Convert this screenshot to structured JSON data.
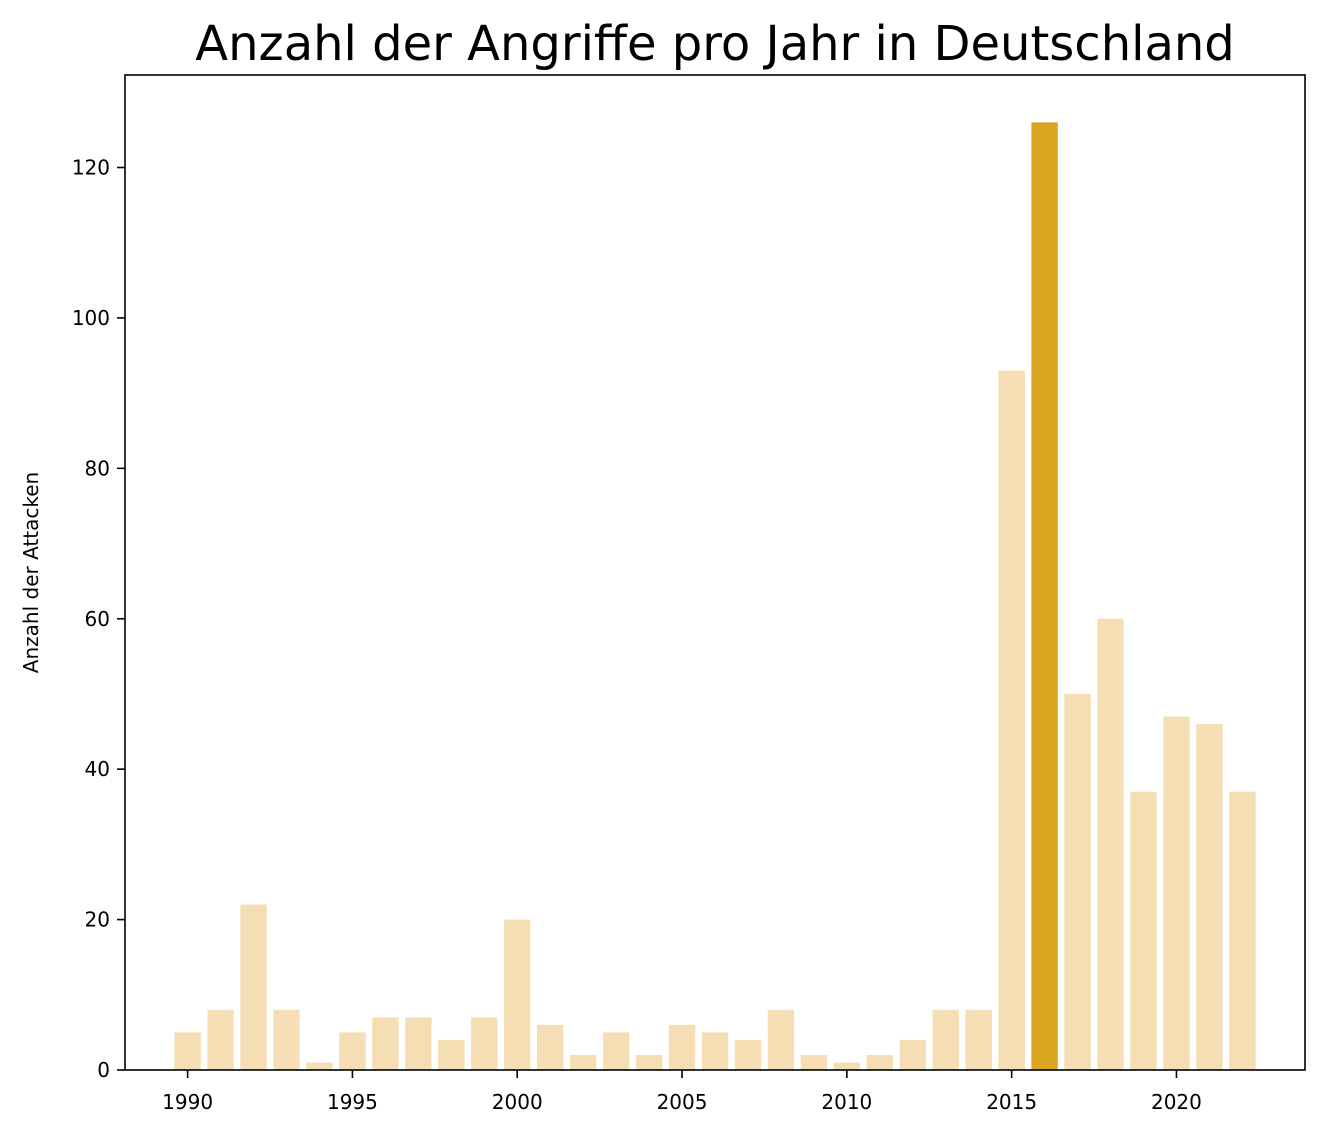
{
  "chart_data": {
    "type": "bar",
    "title": "Anzahl der Angriffe pro Jahr in Deutschland",
    "xlabel": "",
    "ylabel": "Anzahl der Attacken",
    "x": [
      1990,
      1991,
      1992,
      1993,
      1994,
      1995,
      1996,
      1997,
      1998,
      1999,
      2000,
      2001,
      2002,
      2003,
      2004,
      2005,
      2006,
      2007,
      2008,
      2009,
      2010,
      2011,
      2012,
      2013,
      2014,
      2015,
      2016,
      2017,
      2018,
      2019,
      2020,
      2021,
      2022
    ],
    "values": [
      5,
      8,
      22,
      8,
      1,
      5,
      7,
      7,
      4,
      7,
      20,
      6,
      2,
      5,
      2,
      6,
      5,
      4,
      8,
      2,
      1,
      2,
      4,
      8,
      8,
      93,
      126,
      50,
      60,
      37,
      47,
      46,
      37
    ],
    "highlight_x": 2016,
    "xlim": [
      1988.1,
      2023.9
    ],
    "ylim": [
      0,
      132.3
    ],
    "xticks": [
      1990,
      1995,
      2000,
      2005,
      2010,
      2015,
      2020
    ],
    "xtick_labels": [
      "1990",
      "1995",
      "2000",
      "2005",
      "2010",
      "2015",
      "2020"
    ],
    "yticks": [
      0,
      20,
      40,
      60,
      80,
      100,
      120
    ],
    "ytick_labels": [
      "0",
      "20",
      "40",
      "60",
      "80",
      "100",
      "120"
    ],
    "bar_width": 0.8,
    "grid": false,
    "legend": "none",
    "colors": {
      "bar": "#f5deb3",
      "highlight": "#daa520",
      "axes": "#000000",
      "background": "#ffffff"
    }
  }
}
